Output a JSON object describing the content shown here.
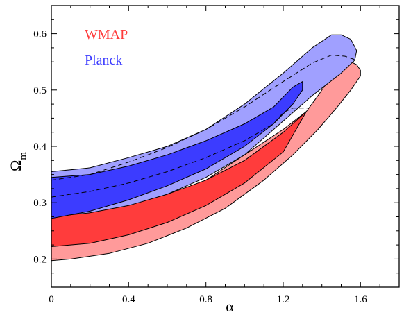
{
  "chart_data": {
    "type": "area",
    "xlabel": "α",
    "ylabel": "Ω",
    "ylabel_subscript": "m",
    "xlim": [
      0,
      1.8
    ],
    "ylim": [
      0.15,
      0.65
    ],
    "x_ticks": [
      0,
      0.4,
      0.8,
      1.2,
      1.6
    ],
    "x_tick_labels": [
      "0",
      "0.4",
      "0.8",
      "1.2",
      "1.6"
    ],
    "y_ticks": [
      0.2,
      0.3,
      0.4,
      0.5,
      0.6
    ],
    "y_tick_labels": [
      "0.2",
      "0.3",
      "0.4",
      "0.5",
      "0.6"
    ],
    "grid": false,
    "legend_position": "top-left",
    "series": [
      {
        "name": "WMAP",
        "color": "#ff3c3c",
        "regions": [
          {
            "level": "outer",
            "color": "#ff9a9a",
            "points": [
              [
                0,
                0.197
              ],
              [
                0.1,
                0.2
              ],
              [
                0.3,
                0.21
              ],
              [
                0.5,
                0.228
              ],
              [
                0.7,
                0.255
              ],
              [
                0.9,
                0.29
              ],
              [
                1.1,
                0.34
              ],
              [
                1.25,
                0.385
              ],
              [
                1.38,
                0.43
              ],
              [
                1.48,
                0.47
              ],
              [
                1.55,
                0.5
              ],
              [
                1.6,
                0.525
              ],
              [
                1.6,
                0.535
              ],
              [
                1.58,
                0.545
              ],
              [
                1.55,
                0.55
              ],
              [
                1.5,
                0.54
              ],
              [
                1.44,
                0.52
              ],
              [
                1.38,
                0.49
              ],
              [
                1.32,
                0.462
              ],
              [
                1.2,
                0.43
              ],
              [
                1.0,
                0.385
              ],
              [
                0.8,
                0.34
              ],
              [
                0.6,
                0.31
              ],
              [
                0.4,
                0.29
              ],
              [
                0.2,
                0.276
              ],
              [
                0,
                0.27
              ]
            ]
          },
          {
            "level": "inner",
            "color": "#ff3c3c",
            "points": [
              [
                0,
                0.222
              ],
              [
                0.2,
                0.228
              ],
              [
                0.4,
                0.243
              ],
              [
                0.6,
                0.265
              ],
              [
                0.8,
                0.295
              ],
              [
                1.0,
                0.335
              ],
              [
                1.2,
                0.39
              ],
              [
                1.32,
                0.462
              ],
              [
                1.2,
                0.425
              ],
              [
                1.0,
                0.375
              ],
              [
                0.8,
                0.34
              ],
              [
                0.6,
                0.315
              ],
              [
                0.4,
                0.295
              ],
              [
                0.2,
                0.282
              ],
              [
                0,
                0.275
              ]
            ]
          }
        ]
      },
      {
        "name": "Planck",
        "color": "#3c3cff",
        "regions": [
          {
            "level": "outer",
            "color": "#a0a0ff",
            "points": [
              [
                0,
                0.262
              ],
              [
                0.2,
                0.27
              ],
              [
                0.4,
                0.29
              ],
              [
                0.6,
                0.315
              ],
              [
                0.8,
                0.345
              ],
              [
                1.0,
                0.385
              ],
              [
                1.2,
                0.445
              ],
              [
                1.35,
                0.49
              ],
              [
                1.5,
                0.53
              ],
              [
                1.57,
                0.553
              ],
              [
                1.58,
                0.57
              ],
              [
                1.55,
                0.59
              ],
              [
                1.5,
                0.598
              ],
              [
                1.45,
                0.598
              ],
              [
                1.35,
                0.575
              ],
              [
                1.2,
                0.53
              ],
              [
                1.0,
                0.475
              ],
              [
                0.8,
                0.43
              ],
              [
                0.6,
                0.4
              ],
              [
                0.4,
                0.38
              ],
              [
                0.2,
                0.362
              ],
              [
                0,
                0.355
              ]
            ]
          },
          {
            "level": "inner",
            "color": "#3c3cff",
            "points": [
              [
                0,
                0.272
              ],
              [
                0.2,
                0.285
              ],
              [
                0.4,
                0.305
              ],
              [
                0.6,
                0.33
              ],
              [
                0.8,
                0.36
              ],
              [
                1.0,
                0.4
              ],
              [
                1.15,
                0.44
              ],
              [
                1.25,
                0.475
              ],
              [
                1.3,
                0.5
              ],
              [
                1.3,
                0.515
              ],
              [
                1.25,
                0.505
              ],
              [
                1.15,
                0.47
              ],
              [
                1.0,
                0.44
              ],
              [
                0.8,
                0.41
              ],
              [
                0.6,
                0.385
              ],
              [
                0.4,
                0.365
              ],
              [
                0.2,
                0.35
              ],
              [
                0,
                0.345
              ]
            ]
          }
        ],
        "dashed_contours": [
          [
            [
              0,
              0.31
            ],
            [
              0.2,
              0.32
            ],
            [
              0.4,
              0.335
            ],
            [
              0.6,
              0.355
            ],
            [
              0.8,
              0.38
            ],
            [
              1.0,
              0.41
            ],
            [
              1.15,
              0.44
            ],
            [
              1.2,
              0.46
            ],
            [
              1.25,
              0.468
            ],
            [
              1.33,
              0.468
            ]
          ],
          [
            [
              0,
              0.34
            ],
            [
              0.2,
              0.35
            ],
            [
              0.4,
              0.372
            ],
            [
              0.6,
              0.398
            ],
            [
              0.8,
              0.43
            ],
            [
              1.0,
              0.47
            ],
            [
              1.2,
              0.515
            ],
            [
              1.35,
              0.548
            ],
            [
              1.45,
              0.562
            ],
            [
              1.52,
              0.56
            ],
            [
              1.58,
              0.553
            ]
          ]
        ]
      }
    ]
  }
}
